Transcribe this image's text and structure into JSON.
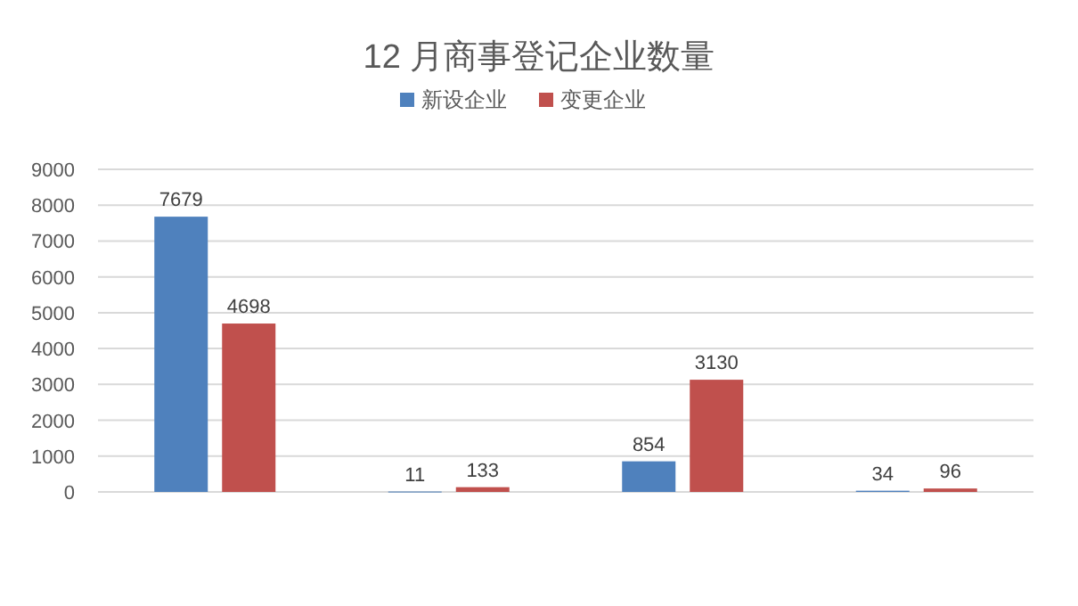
{
  "chart_data": {
    "type": "bar",
    "title": "12 月商事登记企业数量",
    "categories": [
      null,
      null,
      null,
      null
    ],
    "series": [
      {
        "name": "新设企业",
        "color": "#4f81bd",
        "values": [
          7679,
          11,
          854,
          34
        ]
      },
      {
        "name": "变更企业",
        "color": "#c0504d",
        "values": [
          4698,
          133,
          3130,
          96
        ]
      }
    ],
    "ylim": [
      0,
      9000
    ],
    "yticks": [
      0,
      1000,
      2000,
      3000,
      4000,
      5000,
      6000,
      7000,
      8000,
      9000
    ],
    "grid": "y",
    "legend": "top",
    "data_labels": true
  }
}
